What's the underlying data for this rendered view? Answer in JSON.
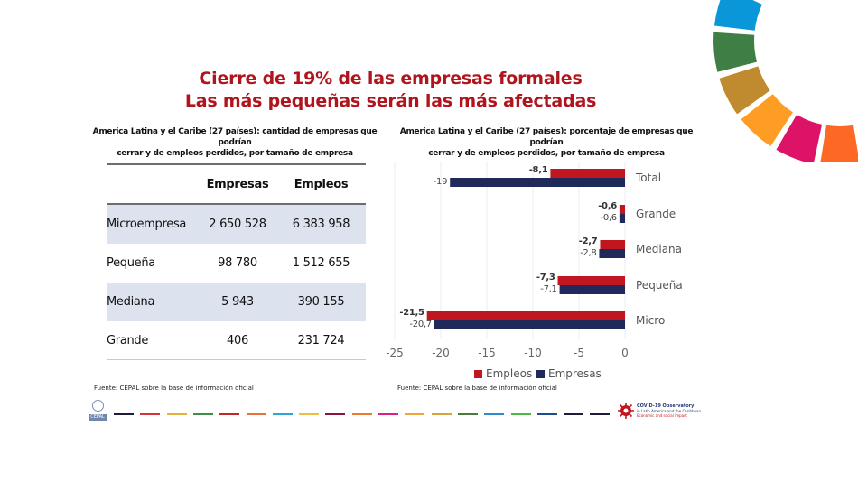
{
  "header": {
    "title_line1": "Cierre de 19% de las empresas formales",
    "title_line2": "Las más pequeñas serán las más afectadas"
  },
  "table_panel": {
    "subtitle_line1": "America Latina y el Caribe (27 países): cantidad de empresas que podrían",
    "subtitle_line2": "cerrar y de empleos perdidos, por tamaño de empresa",
    "columns": [
      "",
      "Empresas",
      "Empleos"
    ],
    "rows": [
      {
        "label": "Microempresa",
        "empresas": "2 650 528",
        "empleos": "6 383 958"
      },
      {
        "label": "Pequeña",
        "empresas": "98 780",
        "empleos": "1 512 655"
      },
      {
        "label": "Mediana",
        "empresas": "5 943",
        "empleos": "390 155"
      },
      {
        "label": "Grande",
        "empresas": "406",
        "empleos": "231 724"
      }
    ],
    "source": "Fuente: CEPAL sobre la base de información oficial"
  },
  "chart_panel": {
    "subtitle_line1": "America Latina y el Caribe (27 países): porcentaje de empresas que podrían",
    "subtitle_line2": "cerrar y de empleos perdidos, por tamaño de empresa",
    "source": "Fuente: CEPAL sobre la base de información oficial"
  },
  "chart_data": {
    "type": "bar",
    "orientation": "horizontal",
    "title": "America Latina y el Caribe (27 países): porcentaje de empresas que podrían cerrar y de empleos perdidos, por tamaño de empresa",
    "categories": [
      "Total",
      "Grande",
      "Mediana",
      "Pequeña",
      "Micro"
    ],
    "series": [
      {
        "name": "Empleos",
        "color": "#c0161f",
        "values": [
          -8.1,
          -0.6,
          -2.7,
          -7.3,
          -21.5
        ],
        "labels": [
          "-8,1",
          "-0,6",
          "-2,7",
          "-7,3",
          "-21,5"
        ]
      },
      {
        "name": "Empresas",
        "color": "#1f2a5a",
        "values": [
          -19,
          -0.6,
          -2.8,
          -7.1,
          -20.7
        ],
        "labels": [
          "-19",
          "-0,6",
          "-2,8",
          "-7,1",
          "-20,7"
        ]
      }
    ],
    "xlim": [
      -25,
      0
    ],
    "xticks": [
      -25,
      -20,
      -15,
      -10,
      -5,
      0
    ],
    "xtick_labels": [
      "-25",
      "-20",
      "-15",
      "-10",
      "-5",
      "0"
    ],
    "xlabel": "",
    "ylabel": "",
    "grid": true,
    "legend_position": "bottom"
  },
  "footer": {
    "logo_left_label": "CEPAL",
    "logo_right_line1": "COVID-19 Observatory",
    "logo_right_line2": "in Latin America and the Caribbean",
    "logo_right_line3": "Economic and social impact",
    "dash_colors": [
      "#1b1d3a",
      "#d3343b",
      "#e2b23c",
      "#3e8f42",
      "#c1272d",
      "#e8703a",
      "#2aa7d5",
      "#f0be3e",
      "#8a1538",
      "#ea7b30",
      "#dd1f84",
      "#f2a53a",
      "#d8a23c",
      "#4b7a3a",
      "#2f8ac9",
      "#50b848",
      "#1c4f8a",
      "#1b1d3a",
      "#1b1d3a"
    ]
  },
  "sdg_wheel_colors": [
    "#e5243b",
    "#dda63a",
    "#4c9f38",
    "#c5192d",
    "#ff3a21",
    "#26bde2",
    "#fcc30b",
    "#a21942",
    "#fd6925",
    "#dd1367",
    "#fd9d24",
    "#bf8b2e",
    "#3f7e44",
    "#0a97d9",
    "#56c02b",
    "#00689d",
    "#19486a"
  ]
}
